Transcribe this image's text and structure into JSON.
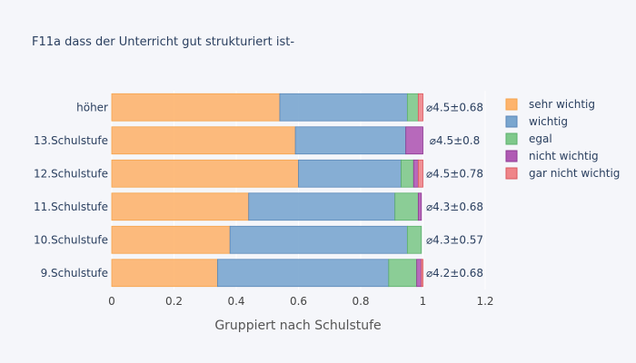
{
  "chart_data": {
    "type": "bar",
    "orientation": "horizontal",
    "barmode": "stack",
    "title": "F11a dass der Unterricht gut strukturiert ist-",
    "xlabel": "Gruppiert nach Schulstufe",
    "ylabel": "",
    "xlim": [
      0,
      1.2
    ],
    "x_ticks": [
      "0",
      "0.2",
      "0.4",
      "0.6",
      "0.8",
      "1",
      "1.2"
    ],
    "x_tick_values": [
      0,
      0.2,
      0.4,
      0.6,
      0.8,
      1.0,
      1.2
    ],
    "categories": [
      "höher",
      "13.Schulstufe",
      "12.Schulstufe",
      "11.Schulstufe",
      "10.Schulstufe",
      "9.Schulstufe"
    ],
    "series": [
      {
        "name": "sehr wichtig",
        "color": "#fdb46e",
        "edge": "#f5a34a",
        "values": [
          0.54,
          0.59,
          0.6,
          0.44,
          0.38,
          0.34
        ]
      },
      {
        "name": "wichtig",
        "color": "#7aa6cf",
        "edge": "#5b87b8",
        "values": [
          0.41,
          0.355,
          0.33,
          0.47,
          0.57,
          0.55
        ]
      },
      {
        "name": "egal",
        "color": "#7fc98b",
        "edge": "#5cb06c",
        "values": [
          0.035,
          0.0,
          0.04,
          0.075,
          0.045,
          0.09
        ]
      },
      {
        "name": "nicht wichtig",
        "color": "#b05ab4",
        "edge": "#8e3a93",
        "values": [
          0.0,
          0.055,
          0.015,
          0.01,
          0.0,
          0.015
        ]
      },
      {
        "name": "gar nicht wichtig",
        "color": "#ef8589",
        "edge": "#d9585e",
        "values": [
          0.015,
          0.0,
          0.015,
          0.0,
          0.0,
          0.005
        ]
      }
    ],
    "annotations": [
      "⌀4.5±0.68",
      "⌀4.5±0.8",
      "⌀4.5±0.78",
      "⌀4.3±0.68",
      "⌀4.3±0.57",
      "⌀4.2±0.68"
    ],
    "legend_position": "right",
    "grid": true
  }
}
